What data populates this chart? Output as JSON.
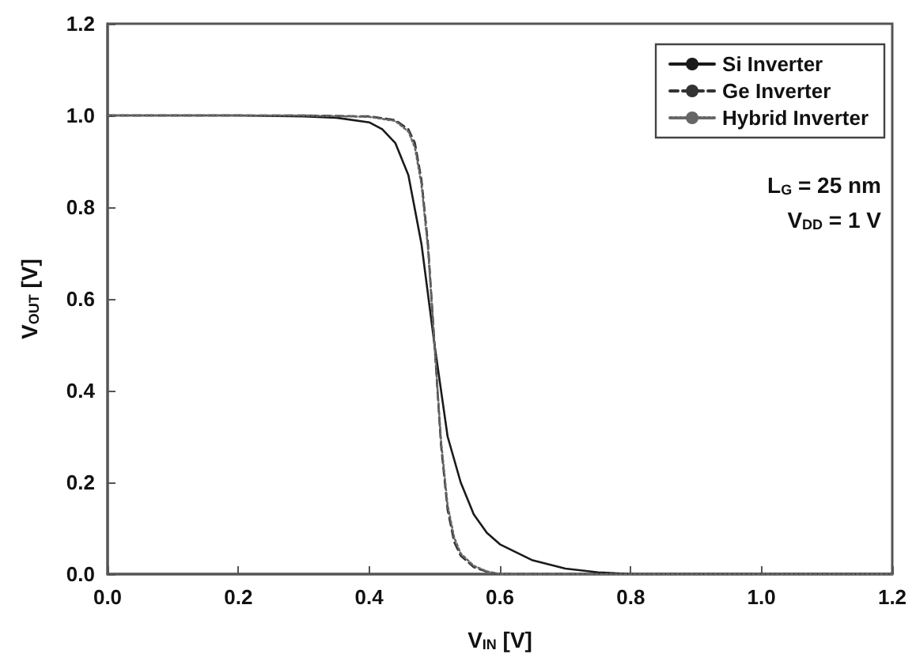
{
  "chart_data": {
    "type": "line",
    "xlabel": "V$_{IN}$ [V]",
    "ylabel": "V$_{OUT}$ [V]",
    "xlim": [
      0,
      1.2
    ],
    "ylim": [
      0,
      1.2
    ],
    "xticks": [
      {
        "value": 0,
        "label": "0.0"
      },
      {
        "value": 0.2,
        "label": "0.2"
      },
      {
        "value": 0.4,
        "label": "0.4"
      },
      {
        "value": 0.6,
        "label": "0.6"
      },
      {
        "value": 0.8,
        "label": "0.8"
      },
      {
        "value": 1,
        "label": "1.0"
      },
      {
        "value": 1.2,
        "label": "1.2"
      }
    ],
    "yticks": [
      {
        "value": 0,
        "label": "0.0"
      },
      {
        "value": 0.2,
        "label": "0.2"
      },
      {
        "value": 0.4,
        "label": "0.4"
      },
      {
        "value": 0.6,
        "label": "0.6"
      },
      {
        "value": 0.8,
        "label": "0.8"
      },
      {
        "value": 1,
        "label": "1.0"
      },
      {
        "value": 1.2,
        "label": "1.2"
      }
    ],
    "grid": false,
    "legend": "top right",
    "marker": "none",
    "annotations": [
      "L$_{G}$ = 25 nm",
      "V$_{DD}$ = 1 V"
    ],
    "series": [
      {
        "name": "Si Inverter",
        "color": "#1a1a1a",
        "line_style": "solid",
        "x": [
          0,
          0.1,
          0.2,
          0.3,
          0.35,
          0.4,
          0.42,
          0.44,
          0.46,
          0.48,
          0.5,
          0.52,
          0.54,
          0.56,
          0.58,
          0.6,
          0.65,
          0.7,
          0.75,
          0.8,
          1.2
        ],
        "values": [
          1,
          1,
          1,
          0.998,
          0.995,
          0.985,
          0.97,
          0.94,
          0.87,
          0.72,
          0.5,
          0.3,
          0.2,
          0.13,
          0.09,
          0.065,
          0.03,
          0.012,
          0.004,
          0,
          0
        ]
      },
      {
        "name": "Ge Inverter",
        "color": "#333333",
        "line_style": "dashed",
        "x": [
          0,
          0.1,
          0.2,
          0.3,
          0.4,
          0.44,
          0.46,
          0.47,
          0.48,
          0.49,
          0.5,
          0.51,
          0.52,
          0.53,
          0.54,
          0.56,
          0.58,
          0.6,
          0.7,
          1.2
        ],
        "values": [
          1,
          1,
          1,
          1,
          0.998,
          0.99,
          0.97,
          0.94,
          0.86,
          0.72,
          0.5,
          0.28,
          0.14,
          0.07,
          0.04,
          0.015,
          0.005,
          0,
          0,
          0
        ]
      },
      {
        "name": "Hybrid Inverter",
        "color": "#666666",
        "line_style": "dotted",
        "x": [
          0,
          0.1,
          0.2,
          0.3,
          0.4,
          0.44,
          0.46,
          0.47,
          0.48,
          0.49,
          0.5,
          0.51,
          0.52,
          0.53,
          0.54,
          0.56,
          0.58,
          0.6,
          0.7,
          1.2
        ],
        "values": [
          1,
          1,
          1,
          1,
          0.997,
          0.988,
          0.965,
          0.93,
          0.85,
          0.71,
          0.5,
          0.29,
          0.15,
          0.08,
          0.045,
          0.018,
          0.006,
          0,
          0,
          0
        ]
      }
    ]
  }
}
